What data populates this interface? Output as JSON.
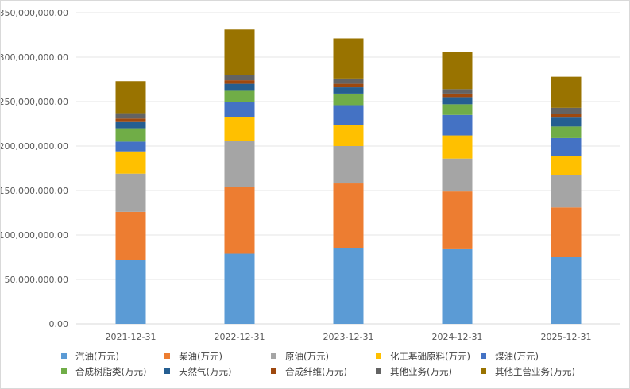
{
  "chart_data": {
    "type": "bar",
    "stacked": true,
    "title": "",
    "xlabel": "",
    "ylabel": "",
    "ylim": [
      0,
      350000000
    ],
    "ytick_values": [
      0,
      50000000,
      100000000,
      150000000,
      200000000,
      250000000,
      300000000,
      350000000
    ],
    "ytick_labels": [
      "0.00",
      "50,000,000.00",
      "100,000,000.00",
      "150,000,000.00",
      "200,000,000.00",
      "250,000,000.00",
      "300,000,000.00",
      "350,000,000.00"
    ],
    "categories": [
      "2021-12-31",
      "2022-12-31",
      "2023-12-31",
      "2024-12-31",
      "2025-12-31"
    ],
    "legend_position": "bottom",
    "series": [
      {
        "name": "汽油(万元)",
        "color": "#5b9bd5",
        "values": [
          72000000,
          79000000,
          85000000,
          84000000,
          75000000
        ]
      },
      {
        "name": "柴油(万元)",
        "color": "#ed7d31",
        "values": [
          54000000,
          75000000,
          73000000,
          65000000,
          56000000
        ]
      },
      {
        "name": "原油(万元)",
        "color": "#a5a5a5",
        "values": [
          43000000,
          52000000,
          42000000,
          37000000,
          36000000
        ]
      },
      {
        "name": "化工基础原料(万元)",
        "color": "#ffc000",
        "values": [
          25000000,
          27000000,
          24000000,
          26000000,
          22000000
        ]
      },
      {
        "name": "煤油(万元)",
        "color": "#4472c4",
        "values": [
          11000000,
          17000000,
          22000000,
          23000000,
          20000000
        ]
      },
      {
        "name": "合成树脂类(万元)",
        "color": "#70ad47",
        "values": [
          15000000,
          13000000,
          13000000,
          12000000,
          13000000
        ]
      },
      {
        "name": "天然气(万元)",
        "color": "#255e91",
        "values": [
          7000000,
          7000000,
          7000000,
          8000000,
          10000000
        ]
      },
      {
        "name": "合成纤维(万元)",
        "color": "#9e480e",
        "values": [
          4000000,
          4000000,
          4000000,
          4000000,
          4000000
        ]
      },
      {
        "name": "其他业务(万元)",
        "color": "#636363",
        "values": [
          6000000,
          6000000,
          6000000,
          5000000,
          7000000
        ]
      },
      {
        "name": "其他主营业务(万元)",
        "color": "#997300",
        "values": [
          36000000,
          51000000,
          45000000,
          42000000,
          35000000
        ]
      }
    ]
  }
}
